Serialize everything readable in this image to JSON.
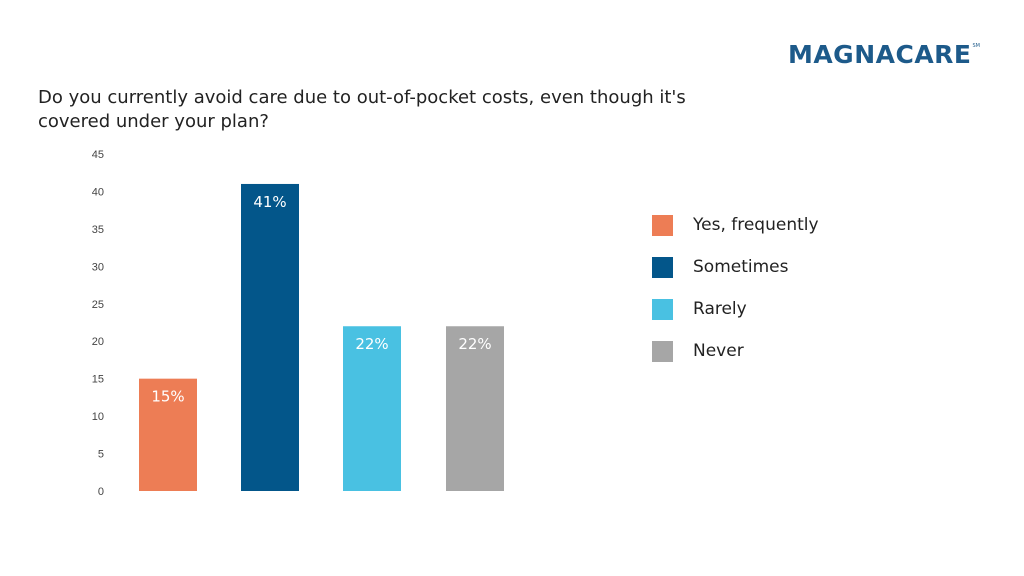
{
  "brand": {
    "name": "MAGNACARE",
    "mark": "SM",
    "color": "#1d5a8a"
  },
  "question": "Do you currently avoid care due to out-of-pocket costs, even though it's covered under your plan?",
  "chart_data": {
    "type": "bar",
    "title": "Do you currently avoid care due to out-of-pocket costs, even though it's covered under your plan?",
    "categories": [
      "Yes, frequently",
      "Sometimes",
      "Rarely",
      "Never"
    ],
    "values": [
      15,
      41,
      22,
      22
    ],
    "data_labels": [
      "15%",
      "41%",
      "22%",
      "22%"
    ],
    "colors": [
      "#ed7d55",
      "#03568a",
      "#49c1e2",
      "#a6a6a6"
    ],
    "ylim": [
      0,
      45
    ],
    "yticks": [
      0,
      5,
      10,
      15,
      20,
      25,
      30,
      35,
      40,
      45
    ],
    "xlabel": "",
    "ylabel": "",
    "grid": false,
    "legend_position": "right"
  }
}
